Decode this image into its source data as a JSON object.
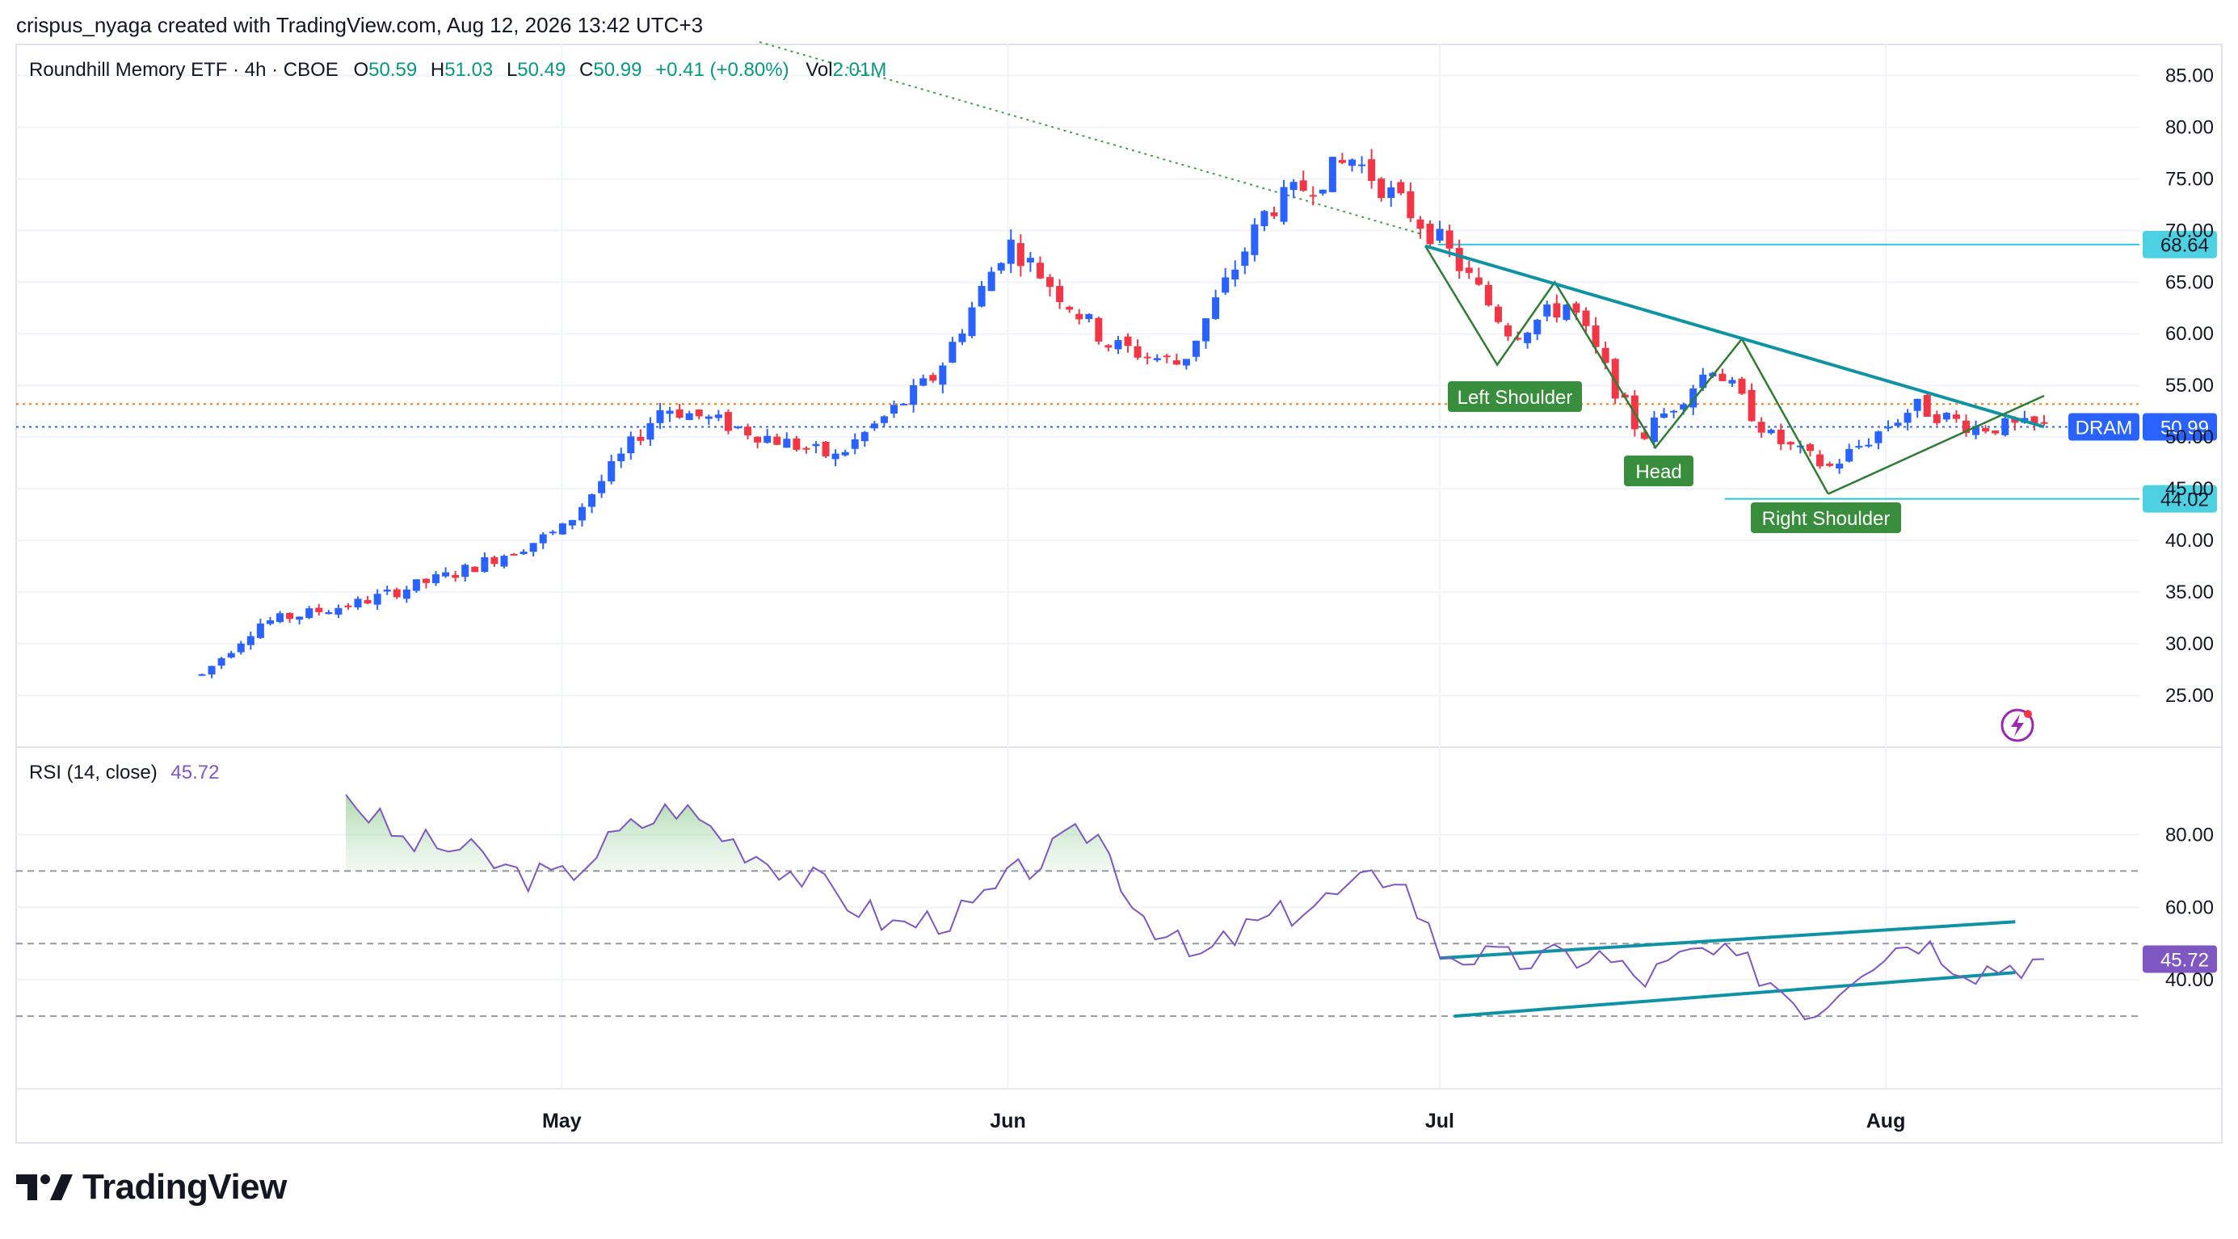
{
  "credit": "crispus_nyaga created with TradingView.com, Aug 12, 2026 13:42 UTC+3",
  "brand": {
    "name": "TradingView",
    "logo_icon": "tradingview-logo-icon"
  },
  "colors": {
    "up": "#2962FF",
    "down": "#F23645",
    "ohlc_value": "#089981",
    "pattern": "#2E7D32",
    "pattern_label_bg": "#388E3C",
    "trendline": "#0E93A5",
    "level_line": "#26C6DA",
    "level_label_bg": "#4DD0E1",
    "last_price_bg": "#2962FF",
    "rsi_line": "#7E57C2",
    "rsi_label_bg": "#7E57C2",
    "dotted_trend": "#43A047",
    "dotted_prev": "#F57C00"
  },
  "legend": {
    "title": "Roundhill Memory ETF · 4h · CBOE",
    "o_label": "O",
    "o_value": "50.59",
    "h_label": "H",
    "h_value": "51.03",
    "l_label": "L",
    "l_value": "50.49",
    "c_label": "C",
    "c_value": "50.99",
    "change": "+0.41 (+0.80%)",
    "vol_label": "Vol",
    "vol_value": "2.01M"
  },
  "price_axis": {
    "ticks": [
      "25.00",
      "30.00",
      "35.00",
      "40.00",
      "45.00",
      "50.00",
      "55.00",
      "60.00",
      "65.00",
      "70.00",
      "75.00",
      "80.00",
      "85.00"
    ],
    "tick_values": [
      25,
      30,
      35,
      40,
      45,
      50,
      55,
      60,
      65,
      70,
      75,
      80,
      85
    ]
  },
  "time_axis": {
    "labels": [
      "May",
      "Jun",
      "Jul",
      "Aug"
    ],
    "dates": [
      "2026-05-01",
      "2026-06-01",
      "2026-07-01",
      "2026-08-01"
    ]
  },
  "levels": [
    {
      "label": "68.64",
      "value": 68.64
    },
    {
      "label": "44.02",
      "value": 44.02
    }
  ],
  "last_price": {
    "symbol": "DRAM",
    "label": "50.99",
    "value": 50.99
  },
  "patterns": [
    {
      "label": "Left Shoulder"
    },
    {
      "label": "Head"
    },
    {
      "label": "Right Shoulder"
    }
  ],
  "rsi": {
    "title": "RSI (14, close)",
    "value_label": "45.72",
    "value": 45.72,
    "ticks": [
      "40.00",
      "60.00",
      "80.00"
    ],
    "tick_values": [
      40,
      60,
      80
    ],
    "bands": [
      30,
      50,
      70
    ]
  },
  "chart_data": {
    "type": "candlestick",
    "title": "Roundhill Memory ETF · 4h · CBOE",
    "ylim": [
      20,
      88
    ],
    "x_date_range": [
      "2026-04-06",
      "2026-08-12"
    ],
    "anchor_series": {
      "name": "DRAM",
      "dates": [
        "2026-04-06",
        "2026-04-10",
        "2026-04-17",
        "2026-04-24",
        "2026-05-01",
        "2026-05-08",
        "2026-05-13",
        "2026-05-20",
        "2026-05-27",
        "2026-06-01",
        "2026-06-08",
        "2026-06-13",
        "2026-06-19",
        "2026-06-25",
        "2026-07-01",
        "2026-07-06",
        "2026-07-10",
        "2026-07-15",
        "2026-07-20",
        "2026-07-24",
        "2026-07-28",
        "2026-08-03",
        "2026-08-07",
        "2026-08-12"
      ],
      "closes": [
        27,
        32,
        34,
        37,
        41,
        53,
        51,
        48,
        56,
        69,
        59,
        57,
        72,
        77,
        69,
        60,
        63,
        50,
        57,
        50,
        47,
        53,
        51,
        50.99
      ]
    },
    "rsi_series": {
      "name": "RSI (14, close)",
      "dates": [
        "2026-04-16",
        "2026-04-20",
        "2026-04-24",
        "2026-04-28",
        "2026-05-01",
        "2026-05-05",
        "2026-05-09",
        "2026-05-13",
        "2026-05-19",
        "2026-05-24",
        "2026-05-29",
        "2026-06-02",
        "2026-06-07",
        "2026-06-10",
        "2026-06-14",
        "2026-06-18",
        "2026-06-23",
        "2026-06-28",
        "2026-07-01",
        "2026-07-06",
        "2026-07-12",
        "2026-07-15",
        "2026-07-19",
        "2026-07-23",
        "2026-07-27",
        "2026-07-30",
        "2026-08-03",
        "2026-08-07",
        "2026-08-12"
      ],
      "values": [
        91,
        78,
        76,
        69,
        68,
        80,
        88,
        78,
        66,
        55,
        58,
        70,
        82,
        60,
        45,
        55,
        62,
        70,
        48,
        45,
        47,
        40,
        48,
        43,
        31,
        44,
        52,
        43,
        45.72
      ]
    },
    "trendlines": [
      {
        "name": "neckline",
        "from": [
          "2026-06-30",
          68.5
        ],
        "to": [
          "2026-08-12",
          51
        ]
      },
      {
        "name": "rising support",
        "from": [
          "2026-07-28",
          44.5
        ],
        "to": [
          "2026-08-12",
          54
        ]
      },
      {
        "name": "rsi channel top",
        "from": [
          "2026-07-01",
          46
        ],
        "to": [
          "2026-08-10",
          56
        ]
      },
      {
        "name": "rsi channel bottom",
        "from": [
          "2026-07-02",
          30
        ],
        "to": [
          "2026-08-10",
          42
        ]
      }
    ]
  }
}
